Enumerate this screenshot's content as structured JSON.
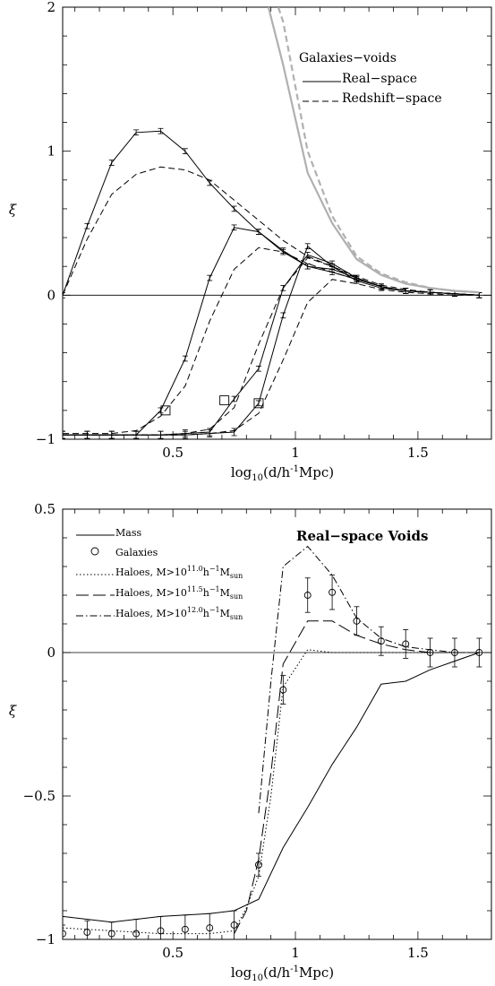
{
  "chart_data": [
    {
      "type": "line",
      "panel": "top",
      "xlabel_parts": [
        "log",
        "10",
        "(d/h",
        "-1",
        "Mpc)"
      ],
      "ylabel": "ξ",
      "xlim": [
        0.05,
        1.8
      ],
      "ylim": [
        -1,
        2
      ],
      "xticks": [
        0.5,
        1,
        1.5
      ],
      "xtick_labels": [
        "0.5",
        "1",
        "1.5"
      ],
      "yticks": [
        -1,
        0,
        1,
        2
      ],
      "ytick_labels": [
        "−1",
        "0",
        "1",
        "2"
      ],
      "legend": {
        "title": "Galaxies−voids",
        "entries": [
          {
            "label": "Real−space",
            "style": "solid"
          },
          {
            "label": "Redshift−space",
            "style": "dashed"
          }
        ],
        "placement": "top-right"
      },
      "series": [
        {
          "group": 1,
          "space": "real",
          "style": "solid",
          "errorbars": true,
          "x": [
            0.05,
            0.15,
            0.25,
            0.35,
            0.45,
            0.55,
            0.65,
            0.75,
            0.85,
            0.95,
            1.05,
            1.15,
            1.25,
            1.35,
            1.45,
            1.55,
            1.65,
            1.75
          ],
          "y": [
            0.0,
            0.48,
            0.92,
            1.13,
            1.14,
            1.0,
            0.78,
            0.6,
            0.44,
            0.31,
            0.2,
            0.18,
            0.12,
            0.06,
            0.03,
            0.02,
            0.01,
            0.0
          ]
        },
        {
          "group": 1,
          "space": "redshift",
          "style": "dashed",
          "x": [
            0.05,
            0.15,
            0.25,
            0.35,
            0.45,
            0.55,
            0.65,
            0.75,
            0.85,
            0.95,
            1.05,
            1.15,
            1.25,
            1.35,
            1.45,
            1.55,
            1.65,
            1.75
          ],
          "y": [
            0.0,
            0.39,
            0.7,
            0.84,
            0.89,
            0.87,
            0.8,
            0.66,
            0.52,
            0.38,
            0.27,
            0.2,
            0.13,
            0.07,
            0.04,
            0.02,
            0.01,
            0.0
          ]
        },
        {
          "group": 2,
          "space": "real",
          "style": "solid",
          "errorbars": true,
          "x": [
            0.05,
            0.15,
            0.25,
            0.35,
            0.45,
            0.55,
            0.65,
            0.75,
            0.85,
            0.95,
            1.05,
            1.15,
            1.25,
            1.35,
            1.45,
            1.55,
            1.65,
            1.75
          ],
          "y": [
            -0.97,
            -0.97,
            -0.97,
            -0.97,
            -0.8,
            -0.44,
            0.12,
            0.47,
            0.44,
            0.3,
            0.2,
            0.16,
            0.11,
            0.06,
            0.03,
            0.02,
            0.01,
            0.0
          ]
        },
        {
          "group": 2,
          "space": "redshift",
          "style": "dashed",
          "x": [
            0.05,
            0.15,
            0.25,
            0.35,
            0.45,
            0.55,
            0.65,
            0.75,
            0.85,
            0.95,
            1.05,
            1.15,
            1.25,
            1.35,
            1.45,
            1.55,
            1.65,
            1.75
          ],
          "y": [
            -0.96,
            -0.96,
            -0.96,
            -0.94,
            -0.84,
            -0.63,
            -0.18,
            0.18,
            0.33,
            0.3,
            0.22,
            0.16,
            0.11,
            0.06,
            0.03,
            0.02,
            0.01,
            0.0
          ]
        },
        {
          "group": 3,
          "space": "real",
          "style": "solid",
          "errorbars": true,
          "x": [
            0.05,
            0.15,
            0.25,
            0.35,
            0.45,
            0.55,
            0.65,
            0.75,
            0.85,
            0.95,
            1.05,
            1.15,
            1.25,
            1.35,
            1.45,
            1.55,
            1.65,
            1.75
          ],
          "y": [
            -0.97,
            -0.97,
            -0.97,
            -0.97,
            -0.97,
            -0.96,
            -0.95,
            -0.72,
            -0.51,
            0.05,
            0.28,
            0.22,
            0.12,
            0.06,
            0.03,
            0.02,
            0.01,
            0.0
          ]
        },
        {
          "group": 3,
          "space": "redshift",
          "style": "dashed",
          "x": [
            0.05,
            0.15,
            0.25,
            0.35,
            0.45,
            0.55,
            0.65,
            0.75,
            0.85,
            0.95,
            1.05,
            1.15,
            1.25,
            1.35,
            1.45,
            1.55,
            1.65,
            1.75
          ],
          "y": [
            -0.97,
            -0.97,
            -0.97,
            -0.97,
            -0.97,
            -0.96,
            -0.93,
            -0.78,
            -0.34,
            0.05,
            0.26,
            0.2,
            0.12,
            0.06,
            0.03,
            0.02,
            0.01,
            0.0
          ]
        },
        {
          "group": 4,
          "space": "real",
          "style": "solid",
          "errorbars": true,
          "x": [
            0.05,
            0.15,
            0.25,
            0.35,
            0.45,
            0.55,
            0.65,
            0.75,
            0.85,
            0.95,
            1.05,
            1.15,
            1.25,
            1.35,
            1.45,
            1.55,
            1.65,
            1.75
          ],
          "y": [
            -0.97,
            -0.97,
            -0.97,
            -0.97,
            -0.97,
            -0.97,
            -0.96,
            -0.95,
            -0.75,
            -0.14,
            0.34,
            0.2,
            0.1,
            0.05,
            0.03,
            0.02,
            0.01,
            0.0
          ]
        },
        {
          "group": 4,
          "space": "redshift",
          "style": "dashed",
          "x": [
            0.05,
            0.15,
            0.25,
            0.35,
            0.45,
            0.55,
            0.65,
            0.75,
            0.85,
            0.95,
            1.05,
            1.15,
            1.25,
            1.35,
            1.45,
            1.55,
            1.65,
            1.75
          ],
          "y": [
            -0.97,
            -0.97,
            -0.97,
            -0.97,
            -0.97,
            -0.97,
            -0.96,
            -0.94,
            -0.82,
            -0.45,
            -0.05,
            0.11,
            0.08,
            0.04,
            0.02,
            0.01,
            0.0,
            0.0
          ]
        },
        {
          "group": 5,
          "space": "real",
          "style": "solid",
          "color": "#b0b0b0",
          "x": [
            0.89,
            0.95,
            1.05,
            1.15,
            1.25,
            1.35,
            1.45,
            1.55,
            1.65,
            1.75
          ],
          "y": [
            2.0,
            1.6,
            0.85,
            0.5,
            0.25,
            0.14,
            0.08,
            0.05,
            0.03,
            0.02
          ]
        },
        {
          "group": 5,
          "space": "redshift",
          "style": "dashed",
          "color": "#b0b0b0",
          "x": [
            0.93,
            0.95,
            1.05,
            1.15,
            1.25,
            1.35,
            1.45,
            1.55,
            1.65,
            1.75
          ],
          "y": [
            2.0,
            1.9,
            1.0,
            0.55,
            0.27,
            0.15,
            0.09,
            0.05,
            0.03,
            0.02
          ]
        }
      ],
      "squares": {
        "x": [
          0.47,
          0.71,
          0.85
        ],
        "y": [
          -0.8,
          -0.73,
          -0.75
        ]
      }
    },
    {
      "type": "line",
      "panel": "bottom",
      "title": "Real−space Voids",
      "xlabel_parts": [
        "log",
        "10",
        "(d/h",
        "-1",
        "Mpc)"
      ],
      "ylabel": "ξ",
      "xlim": [
        0.05,
        1.8
      ],
      "ylim": [
        -1,
        0.5
      ],
      "xticks": [
        0.5,
        1,
        1.5
      ],
      "xtick_labels": [
        "0.5",
        "1",
        "1.5"
      ],
      "yticks": [
        -1,
        -0.5,
        0,
        0.5
      ],
      "ytick_labels": [
        "−1",
        "−0.5",
        "0",
        "0.5"
      ],
      "legend": {
        "placement": "top-left",
        "entries": [
          {
            "label": "Mass",
            "style": "solid"
          },
          {
            "label": "Galaxies",
            "style": "circle"
          },
          {
            "label_parts": [
              "Haloes, M>10",
              "11.0",
              "h",
              "−1",
              "M",
              "sun"
            ],
            "style": "dotted"
          },
          {
            "label_parts": [
              "Haloes, M>10",
              "11.5",
              "h",
              "−1",
              "M",
              "sun"
            ],
            "style": "longdash"
          },
          {
            "label_parts": [
              "Haloes, M>10",
              "12.0",
              "h",
              "−1",
              "M",
              "sun"
            ],
            "style": "dashdot"
          }
        ]
      },
      "series": [
        {
          "name": "Mass",
          "style": "solid",
          "x": [
            0.05,
            0.25,
            0.45,
            0.65,
            0.75,
            0.85,
            0.95,
            1.05,
            1.15,
            1.25,
            1.35,
            1.45,
            1.55,
            1.65,
            1.75
          ],
          "y": [
            -0.92,
            -0.94,
            -0.92,
            -0.91,
            -0.9,
            -0.86,
            -0.68,
            -0.54,
            -0.39,
            -0.26,
            -0.11,
            -0.1,
            -0.06,
            -0.03,
            0.0
          ]
        },
        {
          "name": "Galaxies",
          "style": "circles",
          "errorbars": true,
          "x": [
            0.05,
            0.15,
            0.25,
            0.35,
            0.45,
            0.55,
            0.65,
            0.75,
            0.85,
            0.95,
            1.05,
            1.15,
            1.25,
            1.35,
            1.45,
            1.55,
            1.65,
            1.75
          ],
          "y": [
            -0.98,
            -0.975,
            -0.98,
            -0.98,
            -0.97,
            -0.965,
            -0.96,
            -0.95,
            -0.74,
            -0.13,
            0.2,
            0.21,
            0.11,
            0.04,
            0.03,
            0.0,
            0.0,
            0.0
          ],
          "err": [
            0.03,
            0.04,
            0.04,
            0.05,
            0.05,
            0.05,
            0.05,
            0.05,
            0.04,
            0.05,
            0.06,
            0.06,
            0.05,
            0.05,
            0.05,
            0.05,
            0.05,
            0.05
          ]
        },
        {
          "name": "Haloes 11.0",
          "style": "dotted",
          "x": [
            0.05,
            0.25,
            0.45,
            0.65,
            0.75,
            0.8,
            0.85,
            0.9,
            0.95,
            1.05,
            1.15,
            1.25,
            1.35,
            1.45,
            1.55,
            1.65,
            1.75
          ],
          "y": [
            -0.96,
            -0.97,
            -0.98,
            -0.98,
            -0.97,
            -0.89,
            -0.78,
            -0.5,
            -0.12,
            0.01,
            0.0,
            0.0,
            0.0,
            0.0,
            0.0,
            0.0,
            0.0
          ]
        },
        {
          "name": "Haloes 11.5",
          "style": "longdash",
          "x": [
            0.75,
            0.8,
            0.85,
            0.9,
            0.95,
            1.05,
            1.15,
            1.25,
            1.35,
            1.45,
            1.55,
            1.65,
            1.75
          ],
          "y": [
            -0.98,
            -0.9,
            -0.72,
            -0.42,
            -0.04,
            0.11,
            0.11,
            0.06,
            0.03,
            0.01,
            0.0,
            0.0,
            0.0
          ]
        },
        {
          "name": "Haloes 12.0",
          "style": "dashdot",
          "x": [
            0.85,
            0.9,
            0.95,
            1.05,
            1.15,
            1.25,
            1.35,
            1.45,
            1.55,
            1.65,
            1.75
          ],
          "y": [
            -0.56,
            -0.1,
            0.3,
            0.37,
            0.27,
            0.12,
            0.05,
            0.02,
            0.01,
            0.0,
            0.0
          ]
        }
      ]
    }
  ]
}
